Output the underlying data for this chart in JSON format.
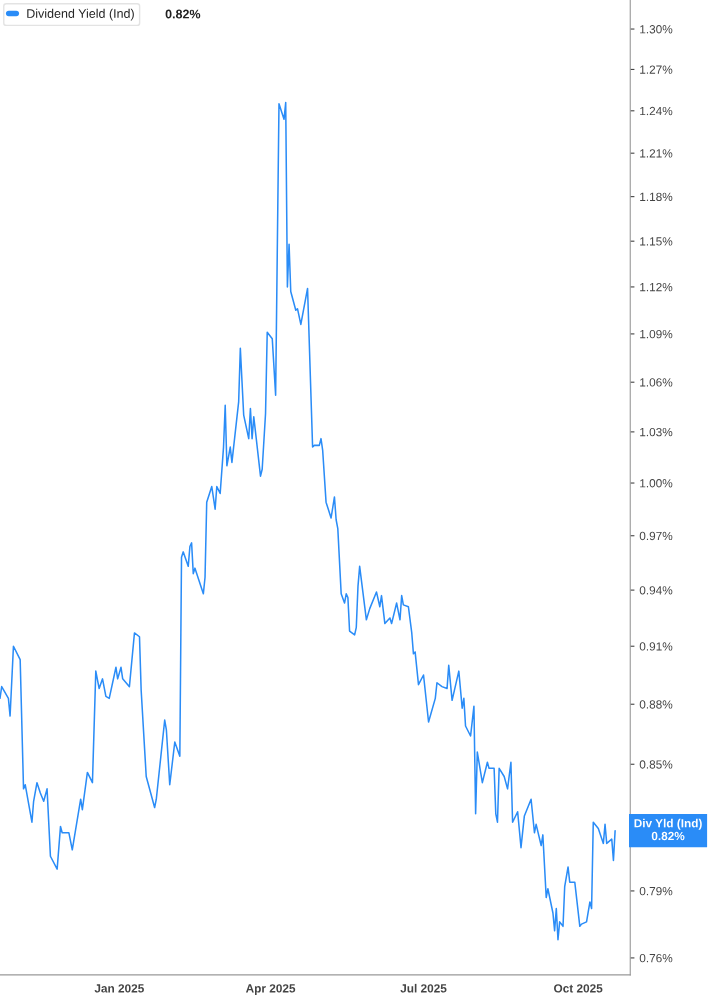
{
  "chart_data": {
    "type": "line",
    "x": [
      "2024-10-22",
      "2024-10-23",
      "2024-10-27",
      "2024-10-28",
      "2024-10-30",
      "2024-11-03",
      "2024-11-05",
      "2024-11-06",
      "2024-11-10",
      "2024-11-11",
      "2024-11-13",
      "2024-11-15",
      "2024-11-17",
      "2024-11-19",
      "2024-11-21",
      "2024-11-25",
      "2024-11-27",
      "2024-11-28",
      "2024-12-02",
      "2024-12-04",
      "2024-12-09",
      "2024-12-10",
      "2024-12-13",
      "2024-12-16",
      "2024-12-18",
      "2024-12-20",
      "2024-12-22",
      "2024-12-24",
      "2024-12-26",
      "2024-12-30",
      "2024-12-31",
      "2025-01-02",
      "2025-01-03",
      "2025-01-07",
      "2025-01-10",
      "2025-01-13",
      "2025-01-14",
      "2025-01-17",
      "2025-01-22",
      "2025-01-23",
      "2025-01-28",
      "2025-01-29",
      "2025-01-31",
      "2025-02-03",
      "2025-02-06",
      "2025-02-07",
      "2025-02-08",
      "2025-02-11",
      "2025-02-12",
      "2025-02-13",
      "2025-02-14",
      "2025-02-15",
      "2025-02-20",
      "2025-02-21",
      "2025-02-22",
      "2025-02-25",
      "2025-02-27",
      "2025-02-28",
      "2025-03-02",
      "2025-03-04",
      "2025-03-05",
      "2025-03-06",
      "2025-03-08",
      "2025-03-09",
      "2025-03-13",
      "2025-03-14",
      "2025-03-16",
      "2025-03-19",
      "2025-03-20",
      "2025-03-21",
      "2025-03-22",
      "2025-03-26",
      "2025-03-27",
      "2025-03-29",
      "2025-03-30",
      "2025-04-02",
      "2025-04-04",
      "2025-04-06",
      "2025-04-09",
      "2025-04-10",
      "2025-04-11",
      "2025-04-12",
      "2025-04-13",
      "2025-04-16",
      "2025-04-17",
      "2025-04-19",
      "2025-04-23",
      "2025-04-26",
      "2025-04-27",
      "2025-04-30",
      "2025-05-01",
      "2025-05-02",
      "2025-05-04",
      "2025-05-07",
      "2025-05-09",
      "2025-05-10",
      "2025-05-11",
      "2025-05-13",
      "2025-05-15",
      "2025-05-16",
      "2025-05-17",
      "2025-05-18",
      "2025-05-21",
      "2025-05-22",
      "2025-05-23",
      "2025-05-24",
      "2025-05-28",
      "2025-05-30",
      "2025-06-03",
      "2025-06-05",
      "2025-06-06",
      "2025-06-08",
      "2025-06-11",
      "2025-06-12",
      "2025-06-15",
      "2025-06-17",
      "2025-06-18",
      "2025-06-19",
      "2025-06-22",
      "2025-06-24",
      "2025-06-25",
      "2025-06-26",
      "2025-06-28",
      "2025-07-01",
      "2025-07-04",
      "2025-07-08",
      "2025-07-09",
      "2025-07-12",
      "2025-07-15",
      "2025-07-16",
      "2025-07-18",
      "2025-07-22",
      "2025-07-24",
      "2025-07-25",
      "2025-07-26",
      "2025-07-29",
      "2025-07-31",
      "2025-08-01",
      "2025-08-02",
      "2025-08-05",
      "2025-08-08",
      "2025-08-09",
      "2025-08-12",
      "2025-08-13",
      "2025-08-14",
      "2025-08-15",
      "2025-08-18",
      "2025-08-20",
      "2025-08-22",
      "2025-08-23",
      "2025-08-26",
      "2025-08-28",
      "2025-08-30",
      "2025-09-03",
      "2025-09-05",
      "2025-09-06",
      "2025-09-09",
      "2025-09-10",
      "2025-09-12",
      "2025-09-13",
      "2025-09-16",
      "2025-09-17",
      "2025-09-18",
      "2025-09-19",
      "2025-09-20",
      "2025-09-22",
      "2025-09-23",
      "2025-09-25",
      "2025-09-26",
      "2025-09-29",
      "2025-10-02",
      "2025-10-03",
      "2025-10-06",
      "2025-10-08",
      "2025-10-09",
      "2025-10-10",
      "2025-10-13",
      "2025-10-16",
      "2025-10-17",
      "2025-10-18",
      "2025-10-21",
      "2025-10-22",
      "2025-10-23"
    ],
    "series": [
      {
        "name": "Dividend Yield (Ind)",
        "color": "#2a8cf7",
        "values": [
          0.883,
          0.889,
          0.883,
          0.874,
          0.91,
          0.903,
          0.838,
          0.84,
          0.822,
          0.832,
          0.841,
          0.836,
          0.832,
          0.838,
          0.806,
          0.8,
          0.82,
          0.817,
          0.817,
          0.809,
          0.833,
          0.828,
          0.846,
          0.841,
          0.897,
          0.888,
          0.893,
          0.884,
          0.883,
          0.899,
          0.893,
          0.899,
          0.893,
          0.889,
          0.917,
          0.915,
          0.887,
          0.844,
          0.829,
          0.833,
          0.872,
          0.867,
          0.84,
          0.861,
          0.854,
          0.958,
          0.961,
          0.953,
          0.964,
          0.966,
          0.949,
          0.952,
          0.938,
          0.947,
          0.989,
          0.998,
          0.985,
          0.998,
          0.994,
          1.021,
          1.046,
          1.01,
          1.021,
          1.012,
          1.048,
          1.081,
          1.04,
          1.026,
          1.044,
          1.026,
          1.039,
          1.004,
          1.008,
          1.041,
          1.091,
          1.087,
          1.052,
          1.245,
          1.234,
          1.246,
          1.12,
          1.148,
          1.117,
          1.105,
          1.106,
          1.096,
          1.119,
          1.021,
          1.022,
          1.022,
          1.026,
          1.019,
          0.989,
          0.98,
          0.992,
          0.979,
          0.974,
          0.938,
          0.933,
          0.938,
          0.936,
          0.918,
          0.916,
          0.92,
          0.942,
          0.953,
          0.924,
          0.93,
          0.939,
          0.931,
          0.937,
          0.922,
          0.925,
          0.922,
          0.933,
          0.924,
          0.937,
          0.932,
          0.931,
          0.917,
          0.906,
          0.907,
          0.89,
          0.895,
          0.871,
          0.883,
          0.891,
          0.889,
          0.888,
          0.9,
          0.882,
          0.897,
          0.878,
          0.883,
          0.869,
          0.864,
          0.879,
          0.826,
          0.856,
          0.841,
          0.851,
          0.848,
          0.848,
          0.826,
          0.822,
          0.848,
          0.844,
          0.838,
          0.851,
          0.822,
          0.827,
          0.81,
          0.825,
          0.833,
          0.817,
          0.821,
          0.811,
          0.816,
          0.787,
          0.791,
          0.78,
          0.772,
          0.782,
          0.768,
          0.776,
          0.774,
          0.792,
          0.801,
          0.794,
          0.794,
          0.774,
          0.775,
          0.776,
          0.785,
          0.782,
          0.822,
          0.819,
          0.812,
          0.821,
          0.812,
          0.814,
          0.804,
          0.818
        ]
      }
    ],
    "xlim": [
      "2024-10-22",
      "2025-11-01"
    ],
    "xticks": [
      {
        "value": "2025-01-01",
        "label": "Jan 2025"
      },
      {
        "value": "2025-04-01",
        "label": "Apr 2025"
      },
      {
        "value": "2025-07-01",
        "label": "Jul 2025"
      },
      {
        "value": "2025-10-01",
        "label": "Oct 2025"
      }
    ],
    "ylim": [
      0.7526,
      1.322
    ],
    "yticks": [
      {
        "value": 0.76,
        "label": "0.76%"
      },
      {
        "value": 0.79,
        "label": "0.79%"
      },
      {
        "value": 0.85,
        "label": "0.85%"
      },
      {
        "value": 0.88,
        "label": "0.88%"
      },
      {
        "value": 0.91,
        "label": "0.91%"
      },
      {
        "value": 0.94,
        "label": "0.94%"
      },
      {
        "value": 0.97,
        "label": "0.97%"
      },
      {
        "value": 1.0,
        "label": "1.00%"
      },
      {
        "value": 1.03,
        "label": "1.03%"
      },
      {
        "value": 1.06,
        "label": "1.06%"
      },
      {
        "value": 1.09,
        "label": "1.09%"
      },
      {
        "value": 1.12,
        "label": "1.12%"
      },
      {
        "value": 1.15,
        "label": "1.15%"
      },
      {
        "value": 1.18,
        "label": "1.18%"
      },
      {
        "value": 1.21,
        "label": "1.21%"
      },
      {
        "value": 1.24,
        "label": "1.24%"
      },
      {
        "value": 1.27,
        "label": "1.27%"
      },
      {
        "value": 1.3,
        "label": "1.30%"
      }
    ],
    "log": true,
    "grid": false,
    "legend": "top left",
    "marker": "none",
    "line_style": "solid",
    "annotations": [
      "0.82%",
      {
        "text": "Div Yld (Ind)\n0.82%",
        "x": "2025-10-23",
        "y": 0.818
      }
    ]
  }
}
